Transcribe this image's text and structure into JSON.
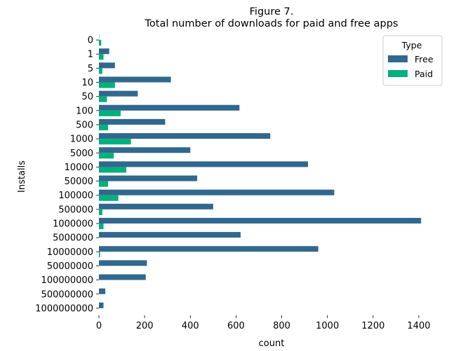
{
  "chart_data": {
    "type": "bar",
    "orientation": "horizontal",
    "title": "Figure 7.\nTotal number of downloads for paid and free apps",
    "xlabel": "count",
    "ylabel": "Installs",
    "xlim": [
      0,
      1440
    ],
    "xticks": [
      0,
      200,
      400,
      600,
      800,
      1000,
      1200,
      1400
    ],
    "categories": [
      "0",
      "1",
      "5",
      "10",
      "50",
      "100",
      "500",
      "1000",
      "5000",
      "10000",
      "50000",
      "100000",
      "500000",
      "1000000",
      "5000000",
      "10000000",
      "50000000",
      "100000000",
      "500000000",
      "1000000000"
    ],
    "series": [
      {
        "name": "Free",
        "color": "#31688e",
        "values": [
          1,
          45,
          70,
          315,
          170,
          615,
          290,
          750,
          400,
          915,
          430,
          1030,
          500,
          1410,
          620,
          960,
          210,
          205,
          28,
          20
        ]
      },
      {
        "name": "Paid",
        "color": "#00b07d",
        "values": [
          10,
          20,
          15,
          70,
          35,
          95,
          40,
          140,
          65,
          120,
          40,
          85,
          15,
          20,
          0,
          5,
          0,
          0,
          0,
          0
        ]
      }
    ],
    "legend": {
      "title": "Type",
      "position": "top-right"
    },
    "grid": false
  }
}
